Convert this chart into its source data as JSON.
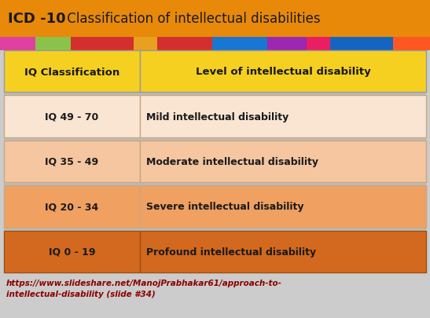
{
  "title_part1": "ICD -10",
  "title_part2": " Classification of intellectual disabilities",
  "title_bg": "#E8890A",
  "title_text_color": "#1a1a1a",
  "strip_colors": [
    "#E0207A",
    "#C03090",
    "#8BC34A",
    "#D32F2F",
    "#E64A19",
    "#E91E63",
    "#1976D2",
    "#9C27B0",
    "#E91E63",
    "#1565C0",
    "#FF5722",
    "#43A047"
  ],
  "header_row": {
    "col1": "IQ Classification",
    "col2": "Level of intellectual disability",
    "bg": "#F5D020",
    "text_color": "#1a1a1a"
  },
  "rows": [
    {
      "col1": "IQ 49 - 70",
      "col2": "Mild intellectual disability",
      "bg": "#FAE5D3",
      "border": "#C8A882"
    },
    {
      "col1": "IQ 35 - 49",
      "col2": "Moderate intellectual disability",
      "bg": "#F5C6A0",
      "border": "#C8A882"
    },
    {
      "col1": "IQ 20 - 34",
      "col2": "Severe intellectual disability",
      "bg": "#F0A060",
      "border": "#C8A882"
    },
    {
      "col1": "IQ 0 - 19",
      "col2": "Profound intellectual disability",
      "bg": "#D2691E",
      "border": "#A05010"
    }
  ],
  "footer_line1": "https://www.slideshare.net/ManojPrabhakar61/approach-to-",
  "footer_line2": "intellectual-disability (slide #34)",
  "footer_color": "#8B0000",
  "bg_color": "#CCCCCC",
  "table_gap_color": "#BBBBBB"
}
